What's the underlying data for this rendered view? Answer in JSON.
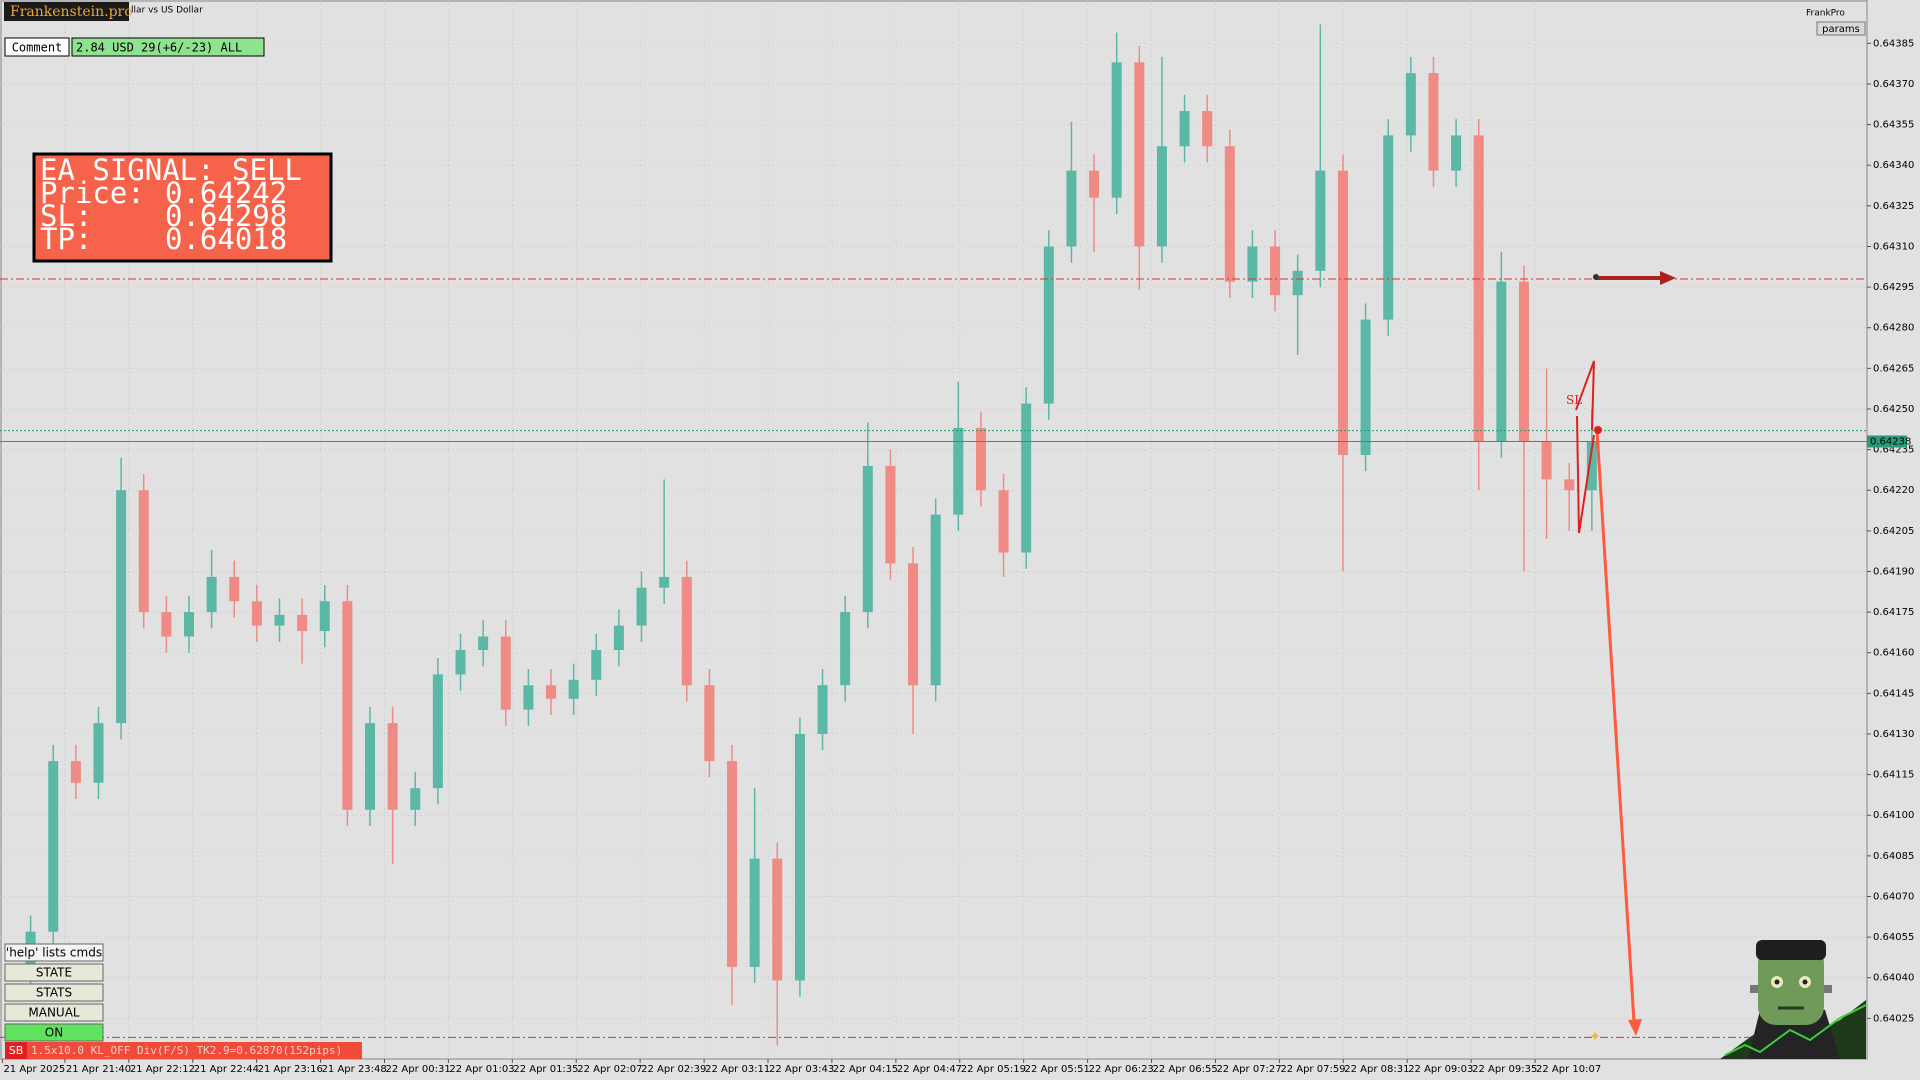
{
  "header": {
    "brand": "Frankenstein.pro",
    "symbol": "llar vs US Dollar",
    "account": "FrankPro",
    "params": "params"
  },
  "comment": {
    "label": "Comment",
    "text": "2.84 USD 29(+6/-23) ALL"
  },
  "signal": {
    "title": "EA SIGNAL: SELL",
    "price_label": "Price:",
    "price": 0.64242,
    "sl_label": "SL:",
    "sl": 0.64298,
    "tp_label": "TP:",
    "tp": 0.64018
  },
  "buttons": [
    "'help' lists cmds",
    "STATE",
    "STATS",
    "MANUAL",
    "ON"
  ],
  "status": {
    "badge": "SB",
    "text": "1.5x10.0 KL_OFF Div(F/S) TK2.9=0.62870(152pips)"
  },
  "sl_marker": "SL",
  "chart": {
    "type": "candlestick",
    "ylim": [
      0.6401,
      0.64401
    ],
    "yticks": [
      0.64385,
      {
        "value": 0.6437,
        "label": "0.64370"
      },
      0.64355,
      {
        "value": 0.6434,
        "label": "0.64340"
      },
      0.64325,
      {
        "value": 0.6431,
        "label": "0.64310"
      },
      0.64295,
      {
        "value": 0.6428,
        "label": "0.64280"
      },
      0.64265,
      {
        "value": 0.6425,
        "label": "0.64250"
      },
      0.64235,
      {
        "value": 0.6422,
        "label": "0.64220"
      },
      0.64205,
      {
        "value": 0.6419,
        "label": "0.64190"
      },
      0.64175,
      {
        "value": 0.6416,
        "label": "0.64160"
      },
      0.64145,
      {
        "value": 0.6413,
        "label": "0.64130"
      },
      0.64115,
      {
        "value": 0.641,
        "label": "0.64100"
      },
      0.64085,
      {
        "value": 0.6407,
        "label": "0.64070"
      },
      0.64055,
      {
        "value": 0.6404,
        "label": "0.64040"
      },
      0.64025
    ],
    "bid": 0.64238,
    "grid": true,
    "up_color": "#5cb8a6",
    "down_color": "#f08a84",
    "time_labels": [
      "21 Apr 2025",
      "21 Apr 21:40",
      "21 Apr 22:12",
      "21 Apr 22:44",
      "21 Apr 23:16",
      "21 Apr 23:48",
      "22 Apr 00:31",
      "22 Apr 01:03",
      "22 Apr 01:35",
      "22 Apr 02:07",
      "22 Apr 02:39",
      "22 Apr 03:11",
      "22 Apr 03:43",
      "22 Apr 04:15",
      "22 Apr 04:47",
      "22 Apr 05:19",
      "22 Apr 05:51",
      "22 Apr 06:23",
      "22 Apr 06:55",
      "22 Apr 07:27",
      "22 Apr 07:59",
      "22 Apr 08:31",
      "22 Apr 09:03",
      "22 Apr 09:35",
      "22 Apr 10:07"
    ],
    "open": [
      0.6404,
      0.64057,
      0.6412,
      0.64112,
      0.64134,
      0.6422,
      0.64175,
      0.64166,
      0.64175,
      0.64188,
      0.64179,
      0.6417,
      0.64174,
      0.64168,
      0.64179,
      0.64102,
      0.64134,
      0.64102,
      0.6411,
      0.64152,
      0.64161,
      0.64166,
      0.64139,
      0.64148,
      0.64143,
      0.6415,
      0.64161,
      0.6417,
      0.64184,
      0.64188,
      0.64148,
      0.6412,
      0.64044,
      0.64084,
      0.64039,
      0.6413,
      0.64148,
      0.64175,
      0.64229,
      0.64193,
      0.64148,
      0.64211,
      0.64243,
      0.6422,
      0.64197,
      0.64252,
      0.6431,
      0.64338,
      0.64328,
      0.64378,
      0.6431,
      0.64347,
      0.6436,
      0.64347,
      0.64297,
      0.6431,
      0.64292,
      0.64301,
      0.64338,
      0.64233,
      0.64283,
      0.64351,
      0.64374,
      0.64338,
      0.64351,
      0.64238,
      0.64297,
      0.64238,
      0.64224,
      0.6422
    ],
    "high": [
      0.64063,
      0.64126,
      0.64126,
      0.6414,
      0.64232,
      0.64226,
      0.64181,
      0.64181,
      0.64198,
      0.64194,
      0.64185,
      0.6418,
      0.6418,
      0.64185,
      0.64185,
      0.6414,
      0.6414,
      0.64116,
      0.64158,
      0.64167,
      0.64172,
      0.64172,
      0.64154,
      0.64154,
      0.64156,
      0.64167,
      0.64176,
      0.6419,
      0.64224,
      0.64194,
      0.64154,
      0.64126,
      0.6411,
      0.6409,
      0.64136,
      0.64154,
      0.64181,
      0.64245,
      0.64235,
      0.64199,
      0.64217,
      0.6426,
      0.64249,
      0.64226,
      0.64258,
      0.64316,
      0.64356,
      0.64344,
      0.64389,
      0.64384,
      0.6438,
      0.64366,
      0.64366,
      0.64353,
      0.64316,
      0.64316,
      0.64307,
      0.64392,
      0.64344,
      0.64289,
      0.64357,
      0.6438,
      0.6438,
      0.64357,
      0.64357,
      0.64308,
      0.64303,
      0.64265,
      0.6423,
      0.6425
    ],
    "low": [
      0.64034,
      0.64051,
      0.64106,
      0.64106,
      0.64128,
      0.64169,
      0.6416,
      0.6416,
      0.64169,
      0.64173,
      0.64164,
      0.64164,
      0.64156,
      0.64162,
      0.64096,
      0.64096,
      0.64082,
      0.64096,
      0.64104,
      0.64146,
      0.64155,
      0.64133,
      0.64133,
      0.64137,
      0.64137,
      0.64144,
      0.64155,
      0.64164,
      0.64178,
      0.64142,
      0.64114,
      0.6403,
      0.64038,
      0.64015,
      0.64033,
      0.64124,
      0.64142,
      0.64169,
      0.64187,
      0.6413,
      0.64142,
      0.64205,
      0.64214,
      0.64188,
      0.64191,
      0.64246,
      0.64304,
      0.64308,
      0.64322,
      0.64294,
      0.64304,
      0.64341,
      0.64341,
      0.64291,
      0.64291,
      0.64286,
      0.6427,
      0.64295,
      0.6419,
      0.64227,
      0.64277,
      0.64345,
      0.64332,
      0.64332,
      0.6422,
      0.64232,
      0.6419,
      0.64202,
      0.64205,
      0.64205
    ],
    "close": [
      0.64057,
      0.6412,
      0.64112,
      0.64134,
      0.6422,
      0.64175,
      0.64166,
      0.64175,
      0.64188,
      0.64179,
      0.6417,
      0.64174,
      0.64168,
      0.64179,
      0.64102,
      0.64134,
      0.64102,
      0.6411,
      0.64152,
      0.64161,
      0.64166,
      0.64139,
      0.64148,
      0.64143,
      0.6415,
      0.64161,
      0.6417,
      0.64184,
      0.64188,
      0.64148,
      0.6412,
      0.64044,
      0.64084,
      0.64039,
      0.6413,
      0.64148,
      0.64175,
      0.64229,
      0.64193,
      0.64148,
      0.64211,
      0.64243,
      0.6422,
      0.64197,
      0.64252,
      0.6431,
      0.64338,
      0.64328,
      0.64378,
      0.6431,
      0.64347,
      0.6436,
      0.64347,
      0.64297,
      0.6431,
      0.64292,
      0.64301,
      0.64338,
      0.64233,
      0.64283,
      0.64351,
      0.64374,
      0.64338,
      0.64351,
      0.64238,
      0.64297,
      0.64238,
      0.64224,
      0.6422,
      0.64238
    ]
  }
}
